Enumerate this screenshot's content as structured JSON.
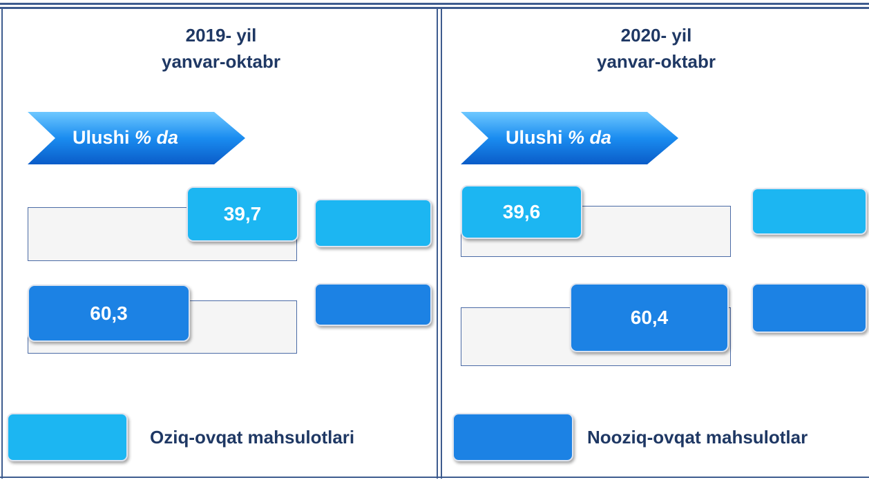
{
  "panels": [
    {
      "title": [
        "2019- yil",
        "yanvar-oktabr"
      ],
      "badge": {
        "text": "Ulushi",
        "unit": "% da"
      },
      "items": [
        {
          "value": "39,7"
        },
        {
          "value": "60,3"
        }
      ]
    },
    {
      "title": [
        "2020- yil",
        "yanvar-oktabr"
      ],
      "badge": {
        "text": "Ulushi",
        "unit": "% da"
      },
      "items": [
        {
          "value": "39,6"
        },
        {
          "value": "60,4"
        }
      ]
    }
  ],
  "legend": [
    {
      "label": "Oziq-ovqat mahsulotlari",
      "color": "#1cb6f2"
    },
    {
      "label": "Nooziq-ovqat mahsulotlar",
      "color": "#1c82e4"
    }
  ]
}
